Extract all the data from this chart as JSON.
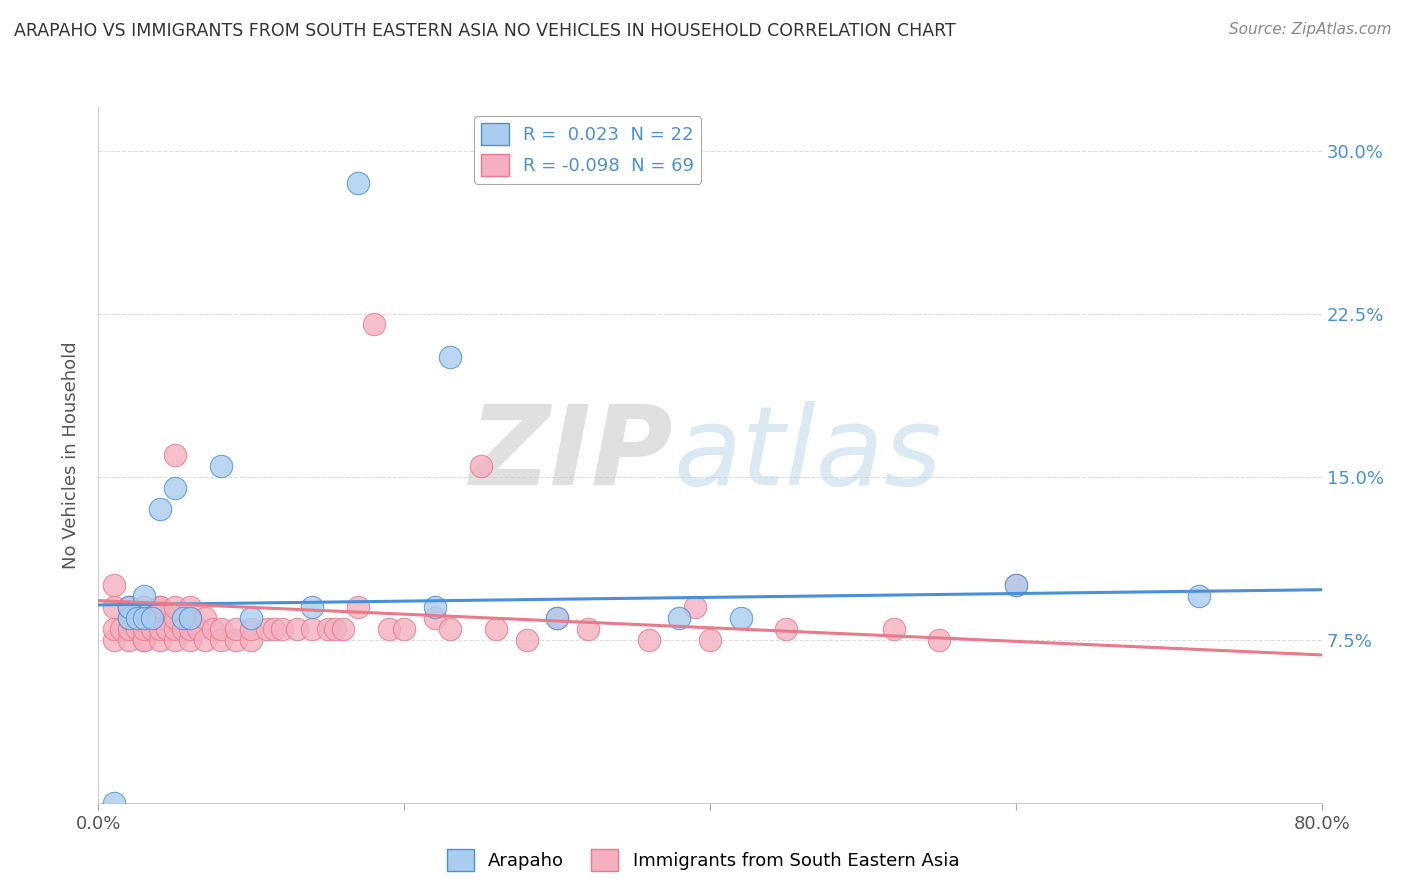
{
  "title": "ARAPAHO VS IMMIGRANTS FROM SOUTH EASTERN ASIA NO VEHICLES IN HOUSEHOLD CORRELATION CHART",
  "source": "Source: ZipAtlas.com",
  "ylabel": "No Vehicles in Household",
  "xlim": [
    0.0,
    0.8
  ],
  "ylim": [
    0.0,
    0.32
  ],
  "blue_R": 0.023,
  "blue_N": 22,
  "pink_R": -0.098,
  "pink_N": 69,
  "blue_scatter_x": [
    0.01,
    0.02,
    0.02,
    0.025,
    0.03,
    0.03,
    0.035,
    0.04,
    0.05,
    0.055,
    0.06,
    0.08,
    0.1,
    0.14,
    0.17,
    0.22,
    0.23,
    0.3,
    0.38,
    0.42,
    0.6,
    0.72
  ],
  "blue_scatter_y": [
    0.0,
    0.085,
    0.09,
    0.085,
    0.085,
    0.095,
    0.085,
    0.135,
    0.145,
    0.085,
    0.085,
    0.155,
    0.085,
    0.09,
    0.285,
    0.09,
    0.205,
    0.085,
    0.085,
    0.085,
    0.1,
    0.095
  ],
  "pink_scatter_x": [
    0.01,
    0.01,
    0.01,
    0.01,
    0.015,
    0.02,
    0.02,
    0.02,
    0.02,
    0.02,
    0.025,
    0.03,
    0.03,
    0.03,
    0.03,
    0.03,
    0.035,
    0.04,
    0.04,
    0.04,
    0.04,
    0.04,
    0.045,
    0.05,
    0.05,
    0.05,
    0.05,
    0.05,
    0.055,
    0.06,
    0.06,
    0.06,
    0.06,
    0.065,
    0.07,
    0.07,
    0.075,
    0.08,
    0.08,
    0.09,
    0.09,
    0.1,
    0.1,
    0.11,
    0.115,
    0.12,
    0.13,
    0.14,
    0.15,
    0.155,
    0.16,
    0.17,
    0.18,
    0.19,
    0.2,
    0.22,
    0.23,
    0.25,
    0.26,
    0.28,
    0.3,
    0.32,
    0.36,
    0.39,
    0.4,
    0.45,
    0.52,
    0.55,
    0.6
  ],
  "pink_scatter_y": [
    0.075,
    0.08,
    0.09,
    0.1,
    0.08,
    0.075,
    0.08,
    0.085,
    0.09,
    0.09,
    0.08,
    0.075,
    0.075,
    0.08,
    0.085,
    0.09,
    0.08,
    0.075,
    0.08,
    0.085,
    0.09,
    0.09,
    0.08,
    0.075,
    0.08,
    0.085,
    0.09,
    0.16,
    0.08,
    0.075,
    0.08,
    0.085,
    0.09,
    0.08,
    0.075,
    0.085,
    0.08,
    0.075,
    0.08,
    0.075,
    0.08,
    0.075,
    0.08,
    0.08,
    0.08,
    0.08,
    0.08,
    0.08,
    0.08,
    0.08,
    0.08,
    0.09,
    0.22,
    0.08,
    0.08,
    0.085,
    0.08,
    0.155,
    0.08,
    0.075,
    0.085,
    0.08,
    0.075,
    0.09,
    0.075,
    0.08,
    0.08,
    0.075,
    0.1
  ],
  "blue_line_start_y": 0.091,
  "blue_line_end_y": 0.098,
  "pink_line_start_y": 0.093,
  "pink_line_end_y": 0.068,
  "blue_line_color": "#4a90d9",
  "pink_line_color": "#e87a8a",
  "blue_scatter_color": "#aaccee",
  "pink_scatter_color": "#f4b0c0",
  "background_color": "#ffffff",
  "grid_color": "#dddddd",
  "grid_yticks": [
    0.075,
    0.15,
    0.225,
    0.3
  ]
}
